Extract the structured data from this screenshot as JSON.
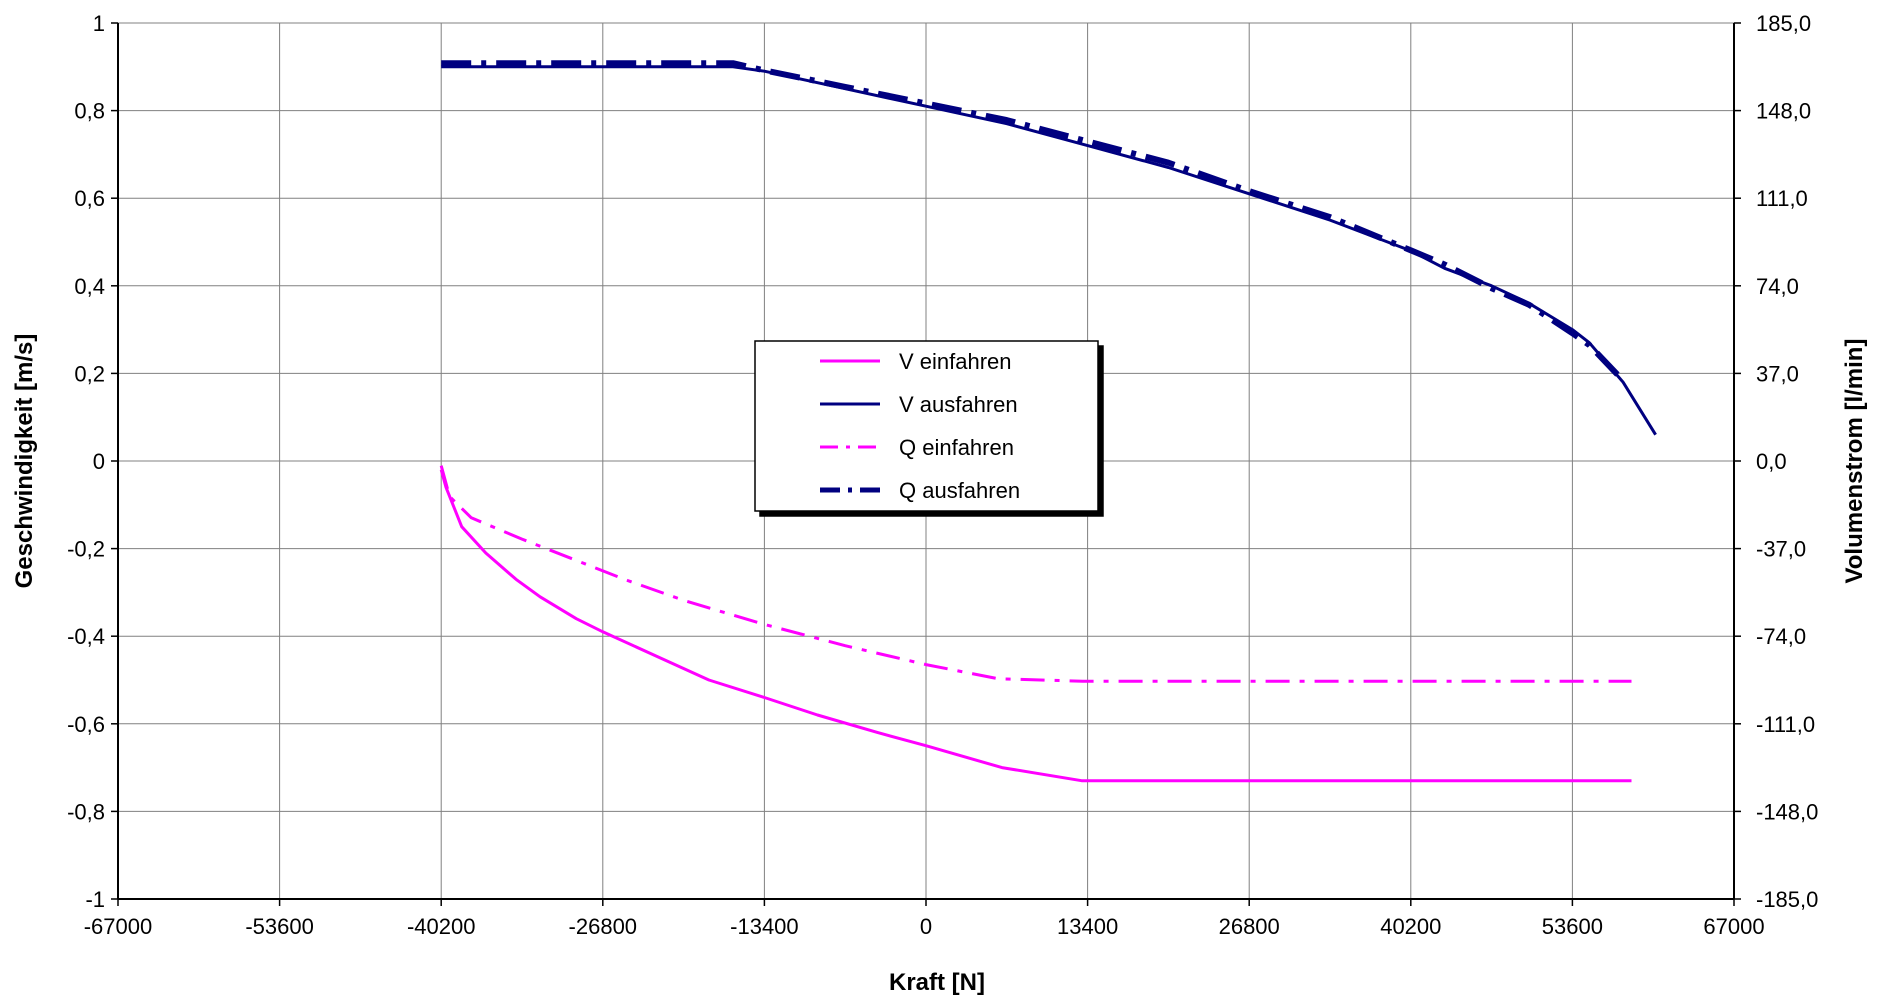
{
  "chart_data": {
    "type": "line",
    "title": "",
    "xlabel": "Kraft [N]",
    "ylabel": "Geschwindigkeit [m/s]",
    "y2label": "Volumenstrom [l/min]",
    "xlim": [
      -67000,
      67000
    ],
    "ylim": [
      -1,
      1
    ],
    "y2lim": [
      -185,
      185
    ],
    "x_ticks": [
      "-67000",
      "-53600",
      "-40200",
      "-26800",
      "-13400",
      "0",
      "13400",
      "26800",
      "40200",
      "53600",
      "67000"
    ],
    "y_ticks": [
      "1",
      "0,8",
      "0,6",
      "0,4",
      "0,2",
      "0",
      "-0,2",
      "-0,4",
      "-0,6",
      "-0,8",
      "-1"
    ],
    "y2_ticks": [
      "185,0",
      "148,0",
      "111,0",
      "74,0",
      "37,0",
      "0,0",
      "-37,0",
      "-74,0",
      "-111,0",
      "-148,0",
      "-185,0"
    ],
    "grid": true,
    "legend_position": "center",
    "series": [
      {
        "name": "V einfahren",
        "color": "#ff00ff",
        "dash": "solid",
        "axis": "left",
        "x": [
          -40200,
          -39800,
          -38500,
          -36500,
          -34000,
          -32000,
          -29000,
          -26800,
          -22000,
          -18000,
          -13400,
          -9000,
          -4000,
          0,
          6300,
          12900,
          20000,
          30000,
          40200,
          50000,
          58500
        ],
        "y": [
          -0.02,
          -0.06,
          -0.15,
          -0.21,
          -0.27,
          -0.31,
          -0.36,
          -0.39,
          -0.45,
          -0.5,
          -0.54,
          -0.58,
          -0.62,
          -0.65,
          -0.7,
          -0.73,
          -0.73,
          -0.73,
          -0.73,
          -0.73,
          -0.73
        ]
      },
      {
        "name": "V ausfahren",
        "color": "#000080",
        "dash": "solid",
        "axis": "left",
        "x": [
          -40200,
          -30000,
          -20000,
          -16000,
          -13400,
          -6700,
          0,
          6700,
          13400,
          20100,
          26800,
          33500,
          40200,
          43000,
          46900,
          50000,
          53600,
          55000,
          57800,
          60500
        ],
        "y": [
          0.9,
          0.9,
          0.9,
          0.9,
          0.89,
          0.85,
          0.81,
          0.77,
          0.72,
          0.67,
          0.61,
          0.55,
          0.48,
          0.44,
          0.4,
          0.36,
          0.3,
          0.27,
          0.18,
          0.06
        ]
      },
      {
        "name": "Q einfahren",
        "color": "#ff00ff",
        "dash": "dashdot",
        "axis": "right",
        "x": [
          -40200,
          -39500,
          -37700,
          -33500,
          -29000,
          -25000,
          -20000,
          -13400,
          -6700,
          0,
          6000,
          13000,
          20000,
          30000,
          40200,
          50000,
          58500
        ],
        "y": [
          -2,
          -15,
          -24,
          -33,
          -42,
          -50,
          -59,
          -69,
          -78,
          -86,
          -92,
          -93,
          -93,
          -93,
          -93,
          -93,
          -93
        ]
      },
      {
        "name": "Q ausfahren",
        "color": "#000080",
        "dash": "dashdot",
        "axis": "right",
        "x": [
          -40200,
          -30000,
          -20000,
          -16000,
          -13400,
          -6700,
          0,
          6700,
          13400,
          20100,
          26800,
          33500,
          40200,
          43000,
          46900,
          50000,
          53600,
          55000,
          57800
        ],
        "y": [
          168,
          168,
          168,
          168,
          165,
          158,
          151,
          144,
          135,
          126,
          114,
          103,
          89,
          83,
          73,
          66,
          54,
          49,
          34
        ]
      }
    ]
  }
}
